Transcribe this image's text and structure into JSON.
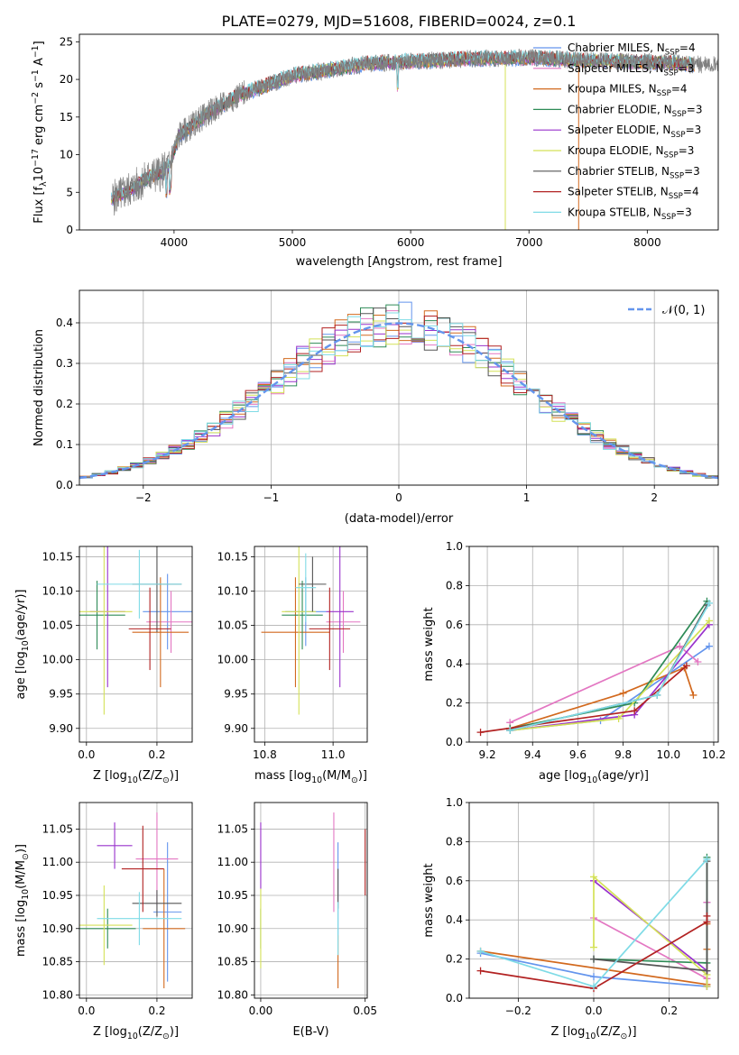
{
  "figure_title": "PLATE=0279, MJD=51608, FIBERID=0024, z=0.1",
  "colors": {
    "Chabrier MILES": "#6495ed",
    "Salpeter MILES": "#e377c2",
    "Kroupa MILES": "#d2691e",
    "Chabrier ELODIE": "#2e8b57",
    "Salpeter ELODIE": "#9932cc",
    "Kroupa ELODIE": "#d4e157",
    "Chabrier STELIB": "#555555",
    "Salpeter STELIB": "#b22222",
    "Kroupa STELIB": "#7fdbe6",
    "data": "#808080",
    "grid": "#b0b0b0",
    "normal": "#6495ed"
  },
  "chart_data": [
    {
      "type": "line",
      "xlabel": "wavelength [Angstrom, rest frame]",
      "ylabel_main": "Flux [f",
      "ylabel_sub": "λ",
      "ylabel_rest": "10",
      "ylabel_exp": "−17",
      "ylabel_units": " erg cm",
      "ylabel_e2": "−2",
      "ylabel_s": " s",
      "ylabel_e1": "−1",
      "ylabel_A": " A",
      "ylabel_e3": "−1",
      "ylabel_close": "]",
      "xlim": [
        3200,
        8600
      ],
      "ylim": [
        0,
        26
      ],
      "xticks": [
        "4000",
        "5000",
        "6000",
        "7000",
        "8000"
      ],
      "yticks": [
        "0",
        "5",
        "10",
        "15",
        "20",
        "25"
      ],
      "continuum": {
        "x": [
          3480,
          3560,
          3640,
          3720,
          3800,
          3880,
          3960,
          4040,
          4120,
          4200,
          4300,
          4400,
          4500,
          4600,
          4800,
          5000,
          5200,
          5400,
          5600,
          5800,
          6000,
          6200,
          6400,
          6600,
          6800,
          7000,
          7200,
          7400,
          7600,
          7800,
          8000,
          8200,
          8400
        ],
        "y": [
          4.2,
          4.8,
          5.5,
          6.3,
          7.2,
          7.5,
          8.5,
          12.5,
          13.5,
          14.5,
          15.6,
          16.5,
          17.5,
          18.2,
          19.3,
          20.5,
          21.0,
          21.5,
          22.0,
          22.2,
          22.4,
          22.5,
          22.7,
          22.8,
          22.8,
          22.9,
          22.7,
          22.6,
          22.5,
          22.4,
          22.3,
          22.2,
          22.0
        ]
      },
      "legend": [
        {
          "base": "Chabrier MILES, N",
          "sub": "SSP",
          "tail": "=4"
        },
        {
          "base": "Salpeter MILES, N",
          "sub": "SSP",
          "tail": "=3"
        },
        {
          "base": "Kroupa MILES, N",
          "sub": "SSP",
          "tail": "=4"
        },
        {
          "base": "Chabrier ELODIE, N",
          "sub": "SSP",
          "tail": "=3"
        },
        {
          "base": "Salpeter ELODIE, N",
          "sub": "SSP",
          "tail": "=3"
        },
        {
          "base": "Kroupa ELODIE, N",
          "sub": "SSP",
          "tail": "=3"
        },
        {
          "base": "Chabrier STELIB, N",
          "sub": "SSP",
          "tail": "=3"
        },
        {
          "base": "Salpeter STELIB, N",
          "sub": "SSP",
          "tail": "=4"
        },
        {
          "base": "Kroupa STELIB, N",
          "sub": "SSP",
          "tail": "=3"
        }
      ]
    },
    {
      "type": "step",
      "xlabel": "(data-model)/error",
      "ylabel": "Normed distribution",
      "xlim": [
        -2.5,
        2.5
      ],
      "ylim": [
        0,
        0.48
      ],
      "xticks": [
        "−2",
        "−1",
        "0",
        "1",
        "2"
      ],
      "yticks": [
        "0.0",
        "0.1",
        "0.2",
        "0.3",
        "0.4"
      ],
      "grid": true,
      "legend_label": "𝒩(0, 1)",
      "legend_position": "top-right"
    },
    {
      "type": "errorbar",
      "xlabel": "Z [log",
      "xlabel_sub": "10",
      "xlabel_rest": "(Z/Z",
      "xlabel_sun": "⊙",
      "xlabel_close": ")]",
      "ylabel": "age  [log",
      "ylabel_sub": "10",
      "ylabel_rest": "(age/yr)]",
      "xlim": [
        -0.02,
        0.3
      ],
      "ylim": [
        9.88,
        10.165
      ],
      "xticks": [
        "0.0",
        "0.2"
      ],
      "yticks": [
        "9.90",
        "9.95",
        "10.00",
        "10.05",
        "10.10",
        "10.15"
      ],
      "points": [
        {
          "m": "Chabrier MILES",
          "x": 0.23,
          "xerr": 0.07,
          "y": 10.07,
          "yerr": 0.055
        },
        {
          "m": "Salpeter MILES",
          "x": 0.24,
          "xerr": 0.07,
          "y": 10.055,
          "yerr": 0.045
        },
        {
          "m": "Kroupa MILES",
          "x": 0.21,
          "xerr": 0.08,
          "y": 10.04,
          "yerr": 0.08
        },
        {
          "m": "Chabrier ELODIE",
          "x": 0.03,
          "xerr": 0.08,
          "y": 10.065,
          "yerr": 0.05
        },
        {
          "m": "Salpeter ELODIE",
          "x": 0.06,
          "xerr": 0.05,
          "y": 10.07,
          "yerr": 0.11
        },
        {
          "m": "Kroupa ELODIE",
          "x": 0.05,
          "xerr": 0.08,
          "y": 10.07,
          "yerr": 0.15
        },
        {
          "m": "Chabrier STELIB",
          "x": 0.2,
          "xerr": 0.07,
          "y": 10.11,
          "yerr": 0.07
        },
        {
          "m": "Salpeter STELIB",
          "x": 0.18,
          "xerr": 0.06,
          "y": 10.045,
          "yerr": 0.06
        },
        {
          "m": "Kroupa STELIB",
          "x": 0.15,
          "xerr": 0.12,
          "y": 10.11,
          "yerr": 0.05
        }
      ]
    },
    {
      "type": "errorbar",
      "xlabel": "mass [log",
      "xlabel_sub": "10",
      "xlabel_rest": "(M/M",
      "xlabel_sun": "⊙",
      "xlabel_close": ")]",
      "xlim": [
        10.77,
        11.1
      ],
      "ylim": [
        9.88,
        10.165
      ],
      "xticks": [
        "10.8",
        "11.0"
      ],
      "yticks": [
        "9.90",
        "9.95",
        "10.00",
        "10.05",
        "10.10",
        "10.15"
      ],
      "points": [
        {
          "m": "Chabrier MILES",
          "x": 10.92,
          "xerr": 0.06,
          "y": 10.07,
          "yerr": 0.05
        },
        {
          "m": "Salpeter MILES",
          "x": 11.03,
          "xerr": 0.05,
          "y": 10.055,
          "yerr": 0.045
        },
        {
          "m": "Kroupa MILES",
          "x": 10.89,
          "xerr": 0.1,
          "y": 10.04,
          "yerr": 0.08
        },
        {
          "m": "Chabrier ELODIE",
          "x": 10.91,
          "xerr": 0.06,
          "y": 10.065,
          "yerr": 0.05
        },
        {
          "m": "Salpeter ELODIE",
          "x": 11.02,
          "xerr": 0.04,
          "y": 10.07,
          "yerr": 0.11
        },
        {
          "m": "Kroupa ELODIE",
          "x": 10.9,
          "xerr": 0.05,
          "y": 10.07,
          "yerr": 0.15
        },
        {
          "m": "Chabrier STELIB",
          "x": 10.94,
          "xerr": 0.04,
          "y": 10.11,
          "yerr": 0.04
        },
        {
          "m": "Salpeter STELIB",
          "x": 10.99,
          "xerr": 0.06,
          "y": 10.045,
          "yerr": 0.06
        },
        {
          "m": "Kroupa STELIB",
          "x": 10.92,
          "xerr": 0.03,
          "y": 10.105,
          "yerr": 0.05
        }
      ]
    },
    {
      "type": "line",
      "xlabel": "age  [log",
      "xlabel_sub": "10",
      "xlabel_rest": "(age/yr)]",
      "ylabel": "mass weight",
      "xlim": [
        9.12,
        10.22
      ],
      "ylim": [
        0,
        1
      ],
      "xticks": [
        "9.2",
        "9.4",
        "9.6",
        "9.8",
        "10.0",
        "10.2"
      ],
      "yticks": [
        "0.0",
        "0.2",
        "0.4",
        "0.6",
        "0.8",
        "1.0"
      ],
      "grid": true,
      "series": [
        {
          "m": "Chabrier MILES",
          "x": [
            9.3,
            9.7,
            10.18
          ],
          "y": [
            0.06,
            0.11,
            0.49
          ]
        },
        {
          "m": "Salpeter MILES",
          "x": [
            9.3,
            10.05,
            10.13
          ],
          "y": [
            0.1,
            0.49,
            0.41
          ]
        },
        {
          "m": "Kroupa MILES",
          "x": [
            9.3,
            9.8,
            10.07,
            10.11
          ],
          "y": [
            0.07,
            0.25,
            0.38,
            0.24
          ]
        },
        {
          "m": "Chabrier ELODIE",
          "x": [
            9.3,
            9.85,
            10.17
          ],
          "y": [
            0.07,
            0.2,
            0.72
          ]
        },
        {
          "m": "Salpeter ELODIE",
          "x": [
            9.3,
            9.85,
            10.18
          ],
          "y": [
            0.06,
            0.14,
            0.6
          ]
        },
        {
          "m": "Kroupa ELODIE",
          "x": [
            9.3,
            9.78,
            10.18
          ],
          "y": [
            0.06,
            0.12,
            0.62
          ]
        },
        {
          "m": "Chabrier STELIB",
          "x": [
            9.3,
            9.95,
            10.17
          ],
          "y": [
            0.06,
            0.24,
            0.7
          ]
        },
        {
          "m": "Salpeter STELIB",
          "x": [
            9.17,
            9.85,
            10.08
          ],
          "y": [
            0.05,
            0.16,
            0.39
          ]
        },
        {
          "m": "Kroupa STELIB",
          "x": [
            9.3,
            9.95,
            10.18
          ],
          "y": [
            0.06,
            0.24,
            0.71
          ]
        }
      ]
    },
    {
      "type": "errorbar",
      "xlabel": "Z [log",
      "xlabel_sub": "10",
      "xlabel_rest": "(Z/Z",
      "xlabel_sun": "⊙",
      "xlabel_close": ")]",
      "ylabel": "mass [log",
      "ylabel_sub": "10",
      "ylabel_rest": "(M/M",
      "ylabel_sun": "⊙",
      "ylabel_close": ")]",
      "xlim": [
        -0.02,
        0.3
      ],
      "ylim": [
        10.795,
        11.09
      ],
      "xticks": [
        "0.0",
        "0.2"
      ],
      "yticks": [
        "10.80",
        "10.85",
        "10.90",
        "10.95",
        "11.00",
        "11.05"
      ],
      "points": [
        {
          "m": "Chabrier MILES",
          "x": 0.23,
          "xerr": 0.04,
          "y": 10.925,
          "yerr": 0.105
        },
        {
          "m": "Salpeter MILES",
          "x": 0.2,
          "xerr": 0.06,
          "y": 11.005,
          "yerr": 0.07
        },
        {
          "m": "Kroupa MILES",
          "x": 0.22,
          "xerr": 0.06,
          "y": 10.9,
          "yerr": 0.09
        },
        {
          "m": "Chabrier ELODIE",
          "x": 0.06,
          "xerr": 0.08,
          "y": 10.9,
          "yerr": 0.03
        },
        {
          "m": "Salpeter ELODIE",
          "x": 0.08,
          "xerr": 0.05,
          "y": 11.025,
          "yerr": 0.035
        },
        {
          "m": "Kroupa ELODIE",
          "x": 0.05,
          "xerr": 0.08,
          "y": 10.905,
          "yerr": 0.06
        },
        {
          "m": "Chabrier STELIB",
          "x": 0.2,
          "xerr": 0.07,
          "y": 10.938,
          "yerr": 0.02
        },
        {
          "m": "Salpeter STELIB",
          "x": 0.16,
          "xerr": 0.06,
          "y": 10.99,
          "yerr": 0.065
        },
        {
          "m": "Kroupa STELIB",
          "x": 0.15,
          "xerr": 0.12,
          "y": 10.915,
          "yerr": 0.04
        }
      ]
    },
    {
      "type": "errorbar",
      "xlabel": "E(B-V)",
      "xlim": [
        -0.003,
        0.051
      ],
      "ylim": [
        10.795,
        11.09
      ],
      "xticks": [
        "0.00",
        "0.05"
      ],
      "yticks": [
        "10.80",
        "10.85",
        "10.90",
        "10.95",
        "11.00",
        "11.05"
      ],
      "points": [
        {
          "m": "Chabrier MILES",
          "x": 0.037,
          "y": 10.96,
          "yerr": 0.07
        },
        {
          "m": "Salpeter MILES",
          "x": 0.035,
          "y": 11.0,
          "yerr": 0.075
        },
        {
          "m": "Kroupa MILES",
          "x": 0.037,
          "y": 10.85,
          "yerr": 0.04
        },
        {
          "m": "Chabrier ELODIE",
          "x": 0.0,
          "y": 10.9,
          "yerr": 0.03
        },
        {
          "m": "Salpeter ELODIE",
          "x": 0.0,
          "y": 11.01,
          "yerr": 0.05
        },
        {
          "m": "Kroupa ELODIE",
          "x": 0.0,
          "y": 10.9,
          "yerr": 0.06
        },
        {
          "m": "Chabrier STELIB",
          "x": 0.037,
          "y": 10.96,
          "yerr": 0.03
        },
        {
          "m": "Salpeter STELIB",
          "x": 0.05,
          "y": 11.0,
          "yerr": 0.05
        },
        {
          "m": "Kroupa STELIB",
          "x": 0.037,
          "y": 10.9,
          "yerr": 0.04
        }
      ]
    },
    {
      "type": "line",
      "xlabel": "Z [log",
      "xlabel_sub": "10",
      "xlabel_rest": "(Z/Z",
      "xlabel_sun": "⊙",
      "xlabel_close": ")]",
      "ylabel": "mass weight",
      "xlim": [
        -0.33,
        0.33
      ],
      "ylim": [
        0,
        1
      ],
      "xticks": [
        "−0.2",
        "0.0",
        "0.2"
      ],
      "yticks": [
        "0.0",
        "0.2",
        "0.4",
        "0.6",
        "0.8",
        "1.0"
      ],
      "grid": true,
      "series": [
        {
          "m": "Chabrier MILES",
          "x": [
            -0.3,
            0.0,
            0.3,
            0.3
          ],
          "y": [
            0.23,
            0.11,
            0.06,
            0.49
          ]
        },
        {
          "m": "Salpeter MILES",
          "x": [
            0.0,
            0.3,
            0.3
          ],
          "y": [
            0.41,
            0.1,
            0.49
          ]
        },
        {
          "m": "Kroupa MILES",
          "x": [
            -0.3,
            0.3,
            0.3,
            0.3
          ],
          "y": [
            0.24,
            0.07,
            0.25,
            0.38
          ]
        },
        {
          "m": "Chabrier ELODIE",
          "x": [
            0.0,
            0.3,
            0.3
          ],
          "y": [
            0.2,
            0.18,
            0.72
          ]
        },
        {
          "m": "Salpeter ELODIE",
          "x": [
            0.0,
            0.3,
            0.3
          ],
          "y": [
            0.6,
            0.14,
            0.06
          ]
        },
        {
          "m": "Kroupa ELODIE",
          "x": [
            0.0,
            0.0,
            0.3,
            0.3
          ],
          "y": [
            0.26,
            0.62,
            0.12,
            0.06
          ]
        },
        {
          "m": "Chabrier STELIB",
          "x": [
            0.0,
            0.3,
            0.3
          ],
          "y": [
            0.2,
            0.14,
            0.7
          ]
        },
        {
          "m": "Salpeter STELIB",
          "x": [
            -0.3,
            0.0,
            0.3,
            0.3
          ],
          "y": [
            0.14,
            0.05,
            0.39,
            0.42
          ]
        },
        {
          "m": "Kroupa STELIB",
          "x": [
            -0.3,
            0.0,
            0.3
          ],
          "y": [
            0.24,
            0.06,
            0.71
          ]
        }
      ]
    }
  ]
}
